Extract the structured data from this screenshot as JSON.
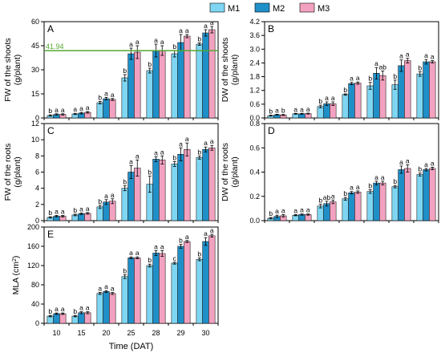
{
  "legend": {
    "items": [
      {
        "name": "M1",
        "color": "#7fd6f2"
      },
      {
        "name": "M2",
        "color": "#1f8fc8"
      },
      {
        "name": "M3",
        "color": "#f2a2c0"
      }
    ]
  },
  "chart_data": [
    {
      "id": "A",
      "type": "bar",
      "panel_label": "A",
      "ylabel_lines": [
        "FW of the shoots",
        "(g/plant)"
      ],
      "ylim": [
        0,
        60
      ],
      "yticks": [
        0,
        15,
        30,
        45,
        60
      ],
      "categories": [
        "10",
        "15",
        "20",
        "25",
        "28",
        "29",
        "30"
      ],
      "series": [
        {
          "name": "M1",
          "values": [
            1.5,
            2.5,
            9.5,
            25,
            29.5,
            40,
            46
          ],
          "errors": [
            0.4,
            0.4,
            0.8,
            2.0,
            1.5,
            2.0,
            0.8
          ],
          "sig": [
            "b",
            "a",
            "b",
            "b",
            "b",
            "b",
            "b"
          ]
        },
        {
          "name": "M2",
          "values": [
            2.2,
            3.0,
            12,
            40,
            42,
            47,
            53
          ],
          "errors": [
            0.4,
            0.5,
            0.8,
            3.5,
            4.0,
            5.0,
            2.0
          ],
          "sig": [
            "a",
            "a",
            "a",
            "a",
            "a",
            "a",
            "a"
          ]
        },
        {
          "name": "M3",
          "values": [
            2.2,
            3.5,
            11.5,
            41,
            42,
            51,
            55
          ],
          "errors": [
            0.4,
            0.5,
            0.6,
            4.0,
            3.0,
            1.0,
            2.0
          ],
          "sig": [
            "a",
            "a",
            "a",
            "a",
            "a",
            "a",
            "a"
          ]
        }
      ],
      "reference_line": {
        "value": 41.94,
        "label": "41.94",
        "color": "#55a630"
      }
    },
    {
      "id": "B",
      "type": "bar",
      "panel_label": "B",
      "ylabel_lines": [
        "DW of the shoots",
        "(g/plant)"
      ],
      "ylim": [
        0,
        4.2
      ],
      "yticks": [
        0,
        0.6,
        1.2,
        1.8,
        2.4,
        3.0,
        3.6,
        4.2
      ],
      "yticklabels": [
        "0.0",
        "0.6",
        "1.2",
        "1.8",
        "2.4",
        "3.0",
        "3.6",
        "4.2"
      ],
      "categories": [
        "10",
        "15",
        "20",
        "25",
        "28",
        "29",
        "30"
      ],
      "series": [
        {
          "name": "M1",
          "values": [
            0.1,
            0.18,
            0.5,
            1.02,
            1.4,
            1.45,
            1.92
          ],
          "errors": [
            0.02,
            0.02,
            0.06,
            0.03,
            0.15,
            0.2,
            0.1
          ],
          "sig": [
            "b",
            "a",
            "b",
            "b",
            "b",
            "b",
            "b"
          ]
        },
        {
          "name": "M2",
          "values": [
            0.14,
            0.18,
            0.62,
            1.5,
            1.95,
            2.28,
            2.45
          ],
          "errors": [
            0.02,
            0.02,
            0.08,
            0.05,
            0.25,
            0.25,
            0.1
          ],
          "sig": [
            "a",
            "a",
            "a",
            "a",
            "a",
            "a",
            "a"
          ]
        },
        {
          "name": "M3",
          "values": [
            0.13,
            0.19,
            0.62,
            1.52,
            1.85,
            2.5,
            2.45
          ],
          "errors": [
            0.02,
            0.02,
            0.08,
            0.05,
            0.2,
            0.1,
            0.05
          ],
          "sig": [
            "b",
            "a",
            "a",
            "a",
            "ab",
            "a",
            "a"
          ]
        }
      ]
    },
    {
      "id": "C",
      "type": "bar",
      "panel_label": "C",
      "ylabel_lines": [
        "FW of the roots",
        "(g/plant)"
      ],
      "ylim": [
        0,
        12
      ],
      "yticks": [
        0,
        2,
        4,
        6,
        8,
        10,
        12
      ],
      "categories": [
        "10",
        "15",
        "20",
        "25",
        "28",
        "29",
        "30"
      ],
      "series": [
        {
          "name": "M1",
          "values": [
            0.4,
            0.7,
            1.7,
            4.0,
            4.5,
            7.0,
            7.8
          ],
          "errors": [
            0.08,
            0.1,
            0.2,
            0.3,
            1.0,
            0.3,
            0.2
          ],
          "sig": [
            "b",
            "b",
            "b",
            "b",
            "b",
            "b",
            "b"
          ]
        },
        {
          "name": "M2",
          "values": [
            0.55,
            0.85,
            2.3,
            6.0,
            7.6,
            8.2,
            8.8
          ],
          "errors": [
            0.1,
            0.1,
            0.3,
            0.8,
            0.3,
            0.8,
            0.3
          ],
          "sig": [
            "a",
            "a",
            "a",
            "a",
            "a",
            "a",
            "a"
          ]
        },
        {
          "name": "M3",
          "values": [
            0.55,
            0.9,
            2.4,
            6.5,
            7.5,
            8.8,
            9.0
          ],
          "errors": [
            0.1,
            0.1,
            0.3,
            1.0,
            0.5,
            0.8,
            0.3
          ],
          "sig": [
            "a",
            "a",
            "a",
            "a",
            "a",
            "a",
            "a"
          ]
        }
      ]
    },
    {
      "id": "D",
      "type": "bar",
      "panel_label": "D",
      "ylabel_lines": [
        "DW of the roots",
        "(g/plant)"
      ],
      "ylim": [
        0,
        0.8
      ],
      "yticks": [
        0,
        0.2,
        0.4,
        0.6,
        0.8
      ],
      "yticklabels": [
        "0.0",
        "0.2",
        "0.4",
        "0.6",
        "0.8"
      ],
      "categories": [
        "10",
        "15",
        "20",
        "25",
        "28",
        "29",
        "30"
      ],
      "series": [
        {
          "name": "M1",
          "values": [
            0.02,
            0.045,
            0.12,
            0.18,
            0.24,
            0.28,
            0.38
          ],
          "errors": [
            0.006,
            0.005,
            0.015,
            0.012,
            0.015,
            0.01,
            0.012
          ],
          "sig": [
            "b",
            "a",
            "b",
            "b",
            "b",
            "b",
            "b"
          ]
        },
        {
          "name": "M2",
          "values": [
            0.035,
            0.05,
            0.14,
            0.23,
            0.31,
            0.42,
            0.42
          ],
          "errors": [
            0.01,
            0.005,
            0.02,
            0.01,
            0.015,
            0.03,
            0.01
          ],
          "sig": [
            "a",
            "a",
            "ab",
            "a",
            "a",
            "a",
            "a"
          ]
        },
        {
          "name": "M3",
          "values": [
            0.04,
            0.05,
            0.155,
            0.235,
            0.31,
            0.43,
            0.43
          ],
          "errors": [
            0.01,
            0.005,
            0.015,
            0.01,
            0.015,
            0.03,
            0.01
          ],
          "sig": [
            "a",
            "a",
            "a",
            "a",
            "a",
            "a",
            "a"
          ]
        }
      ]
    },
    {
      "id": "E",
      "type": "bar",
      "panel_label": "E",
      "ylabel_html": "MLA (cm<tspan baseline-shift=\"super\" font-size=\"7\">2</tspan>)",
      "ylabel_lines": [
        "MLA (cm",
        "2",
        ")"
      ],
      "ylim": [
        0,
        200
      ],
      "yticks": [
        0,
        40,
        80,
        120,
        160,
        200
      ],
      "categories": [
        "10",
        "15",
        "20",
        "25",
        "28",
        "29",
        "30"
      ],
      "xlabel": "Time (DAT)",
      "series": [
        {
          "name": "M1",
          "values": [
            15,
            15,
            62,
            97,
            120,
            125,
            133
          ],
          "errors": [
            1.5,
            1.5,
            2.0,
            4.0,
            3.0,
            2.0,
            3.0
          ],
          "sig": [
            "b",
            "b",
            "a",
            "b",
            "b",
            "c",
            "b"
          ]
        },
        {
          "name": "M2",
          "values": [
            20,
            22,
            66,
            136,
            146,
            160,
            170
          ],
          "errors": [
            1.5,
            2.0,
            2.0,
            2.0,
            5.0,
            4.0,
            8.0
          ],
          "sig": [
            "a",
            "a",
            "a",
            "a",
            "a",
            "b",
            "a"
          ]
        },
        {
          "name": "M3",
          "values": [
            20,
            22,
            62,
            136,
            145,
            170,
            182
          ],
          "errors": [
            1.5,
            2.0,
            2.0,
            2.0,
            6.0,
            2.0,
            3.0
          ],
          "sig": [
            "a",
            "a",
            "a",
            "a",
            "a",
            "a",
            "a"
          ]
        }
      ]
    }
  ]
}
